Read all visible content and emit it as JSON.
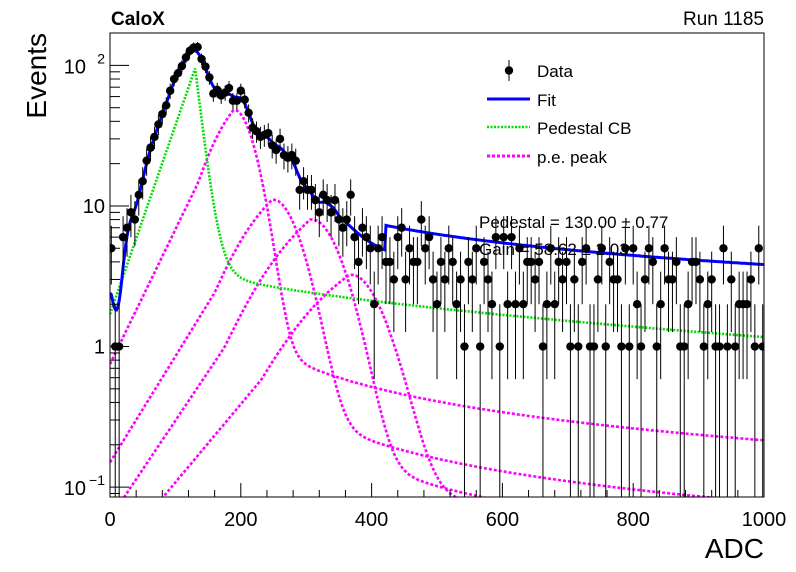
{
  "header": {
    "experiment": "CaloX",
    "run": "Run 1185"
  },
  "chart_data": {
    "type": "scatter",
    "xlabel": "ADC",
    "ylabel": "Events",
    "xlim": [
      0,
      1000
    ],
    "ylim": [
      0.085,
      170
    ],
    "yscale": "log",
    "xticks": [
      0,
      200,
      400,
      600,
      800,
      1000
    ],
    "ytick_labels": [
      {
        "value": 0.1,
        "base": "10",
        "exp": "−1"
      },
      {
        "value": 1,
        "text": "1"
      },
      {
        "value": 10,
        "text": "10"
      },
      {
        "value": 100,
        "base": "10",
        "exp": "2"
      }
    ],
    "legend": {
      "position": "top-right",
      "entries": [
        {
          "label": "Data",
          "style": "marker",
          "color": "#000000"
        },
        {
          "label": "Fit",
          "style": "solid",
          "color": "#0000ff"
        },
        {
          "label": "Pedestal CB",
          "style": "dotted",
          "color": "#00dd00"
        },
        {
          "label": "p.e. peak",
          "style": "dotted",
          "color": "#ff00ff"
        }
      ]
    },
    "annotations": [
      "Pedestal = 130.00 ± 0.77",
      "Gain = 58.62 ± 2.03"
    ],
    "data_points": {
      "name": "Data",
      "x": [
        2,
        8,
        14,
        20,
        26,
        32,
        38,
        44,
        50,
        56,
        62,
        68,
        74,
        80,
        86,
        92,
        98,
        104,
        110,
        116,
        122,
        128,
        134,
        140,
        146,
        152,
        158,
        164,
        170,
        176,
        182,
        188,
        194,
        200,
        206,
        212,
        218,
        224,
        230,
        236,
        242,
        248,
        254,
        260,
        266,
        272,
        278,
        284,
        290,
        296,
        302,
        308,
        314,
        320,
        326,
        332,
        338,
        344,
        350,
        356,
        362,
        368,
        374,
        380,
        386,
        392,
        398,
        404,
        410,
        416,
        422,
        428,
        434,
        440,
        446,
        452,
        458,
        464,
        470,
        476,
        482,
        488,
        494,
        500,
        506,
        512,
        518,
        524,
        530,
        536,
        542,
        548,
        554,
        560,
        566,
        572,
        578,
        584,
        590,
        596,
        602,
        608,
        614,
        620,
        626,
        632,
        638,
        644,
        650,
        656,
        662,
        668,
        674,
        680,
        686,
        692,
        698,
        704,
        710,
        716,
        722,
        728,
        734,
        740,
        746,
        752,
        758,
        764,
        770,
        776,
        782,
        788,
        794,
        800,
        806,
        812,
        818,
        824,
        830,
        836,
        842,
        848,
        854,
        860,
        866,
        872,
        878,
        884,
        890,
        896,
        902,
        908,
        914,
        920,
        926,
        932,
        938,
        944,
        950,
        956,
        962,
        968,
        974,
        980,
        986,
        992,
        998
      ],
      "y": [
        5,
        1,
        1,
        6,
        7,
        9,
        8,
        12,
        15,
        21,
        26,
        31,
        38,
        45,
        52,
        66,
        80,
        88,
        99,
        114,
        127,
        134,
        135,
        111,
        98,
        82,
        63,
        67,
        61,
        64,
        69,
        56,
        56,
        66,
        57,
        46,
        36,
        34,
        31,
        32,
        33,
        27,
        25,
        30,
        23,
        22,
        23,
        21,
        13,
        15,
        13,
        13,
        11,
        9,
        12,
        11,
        9,
        11,
        8,
        7,
        8,
        12,
        6,
        4,
        7,
        6,
        5,
        2,
        5,
        6,
        4,
        4,
        3,
        6,
        7,
        3,
        5,
        4,
        4,
        8,
        5,
        6,
        3,
        2,
        4,
        3,
        5,
        4,
        2,
        3,
        1,
        4,
        3,
        5,
        1,
        4,
        3,
        2,
        6,
        1,
        6,
        2,
        6,
        2,
        5,
        2,
        4,
        4,
        3,
        4,
        1,
        2,
        5,
        2,
        4,
        3,
        4,
        1,
        3,
        1,
        4,
        5,
        1,
        1,
        3,
        5,
        1,
        4,
        3,
        3,
        1,
        5,
        1,
        5,
        2,
        1,
        3,
        5,
        4,
        1,
        2,
        5,
        3,
        3,
        4,
        1,
        1,
        2,
        4,
        4,
        3,
        1,
        2,
        3,
        1,
        1,
        5,
        1,
        3,
        1,
        2,
        2,
        2,
        3,
        1,
        5,
        1
      ]
    },
    "model": {
      "pedestal": 130.0,
      "gain": 58.62,
      "pe_peaks": 4
    }
  }
}
